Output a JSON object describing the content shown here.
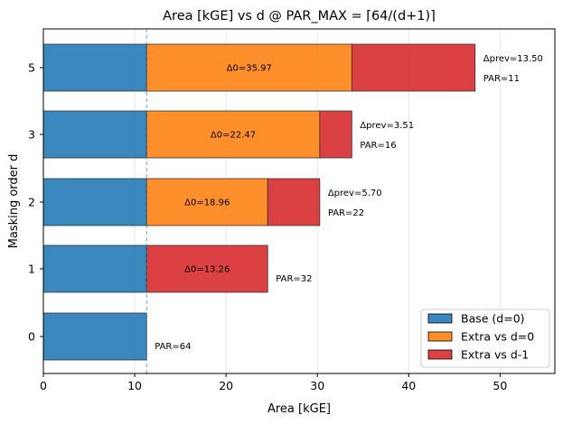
{
  "chart_data": {
    "type": "bar",
    "orientation": "horizontal",
    "stacked": true,
    "title": "Area [kGE] vs d @ PAR_MAX = ⌈64/(d+1)⌉",
    "xlabel": "Area [kGE]",
    "ylabel": "Masking order d",
    "xlim": [
      0,
      56
    ],
    "xticks": [
      "0",
      "10",
      "20",
      "30",
      "40",
      "50"
    ],
    "xtick_values": [
      0,
      10,
      20,
      30,
      40,
      50
    ],
    "vertical_gridlines": true,
    "reference_line_x": 11.3,
    "legend_placement": "bottom-right",
    "categories": [
      "0",
      "1",
      "2",
      "3",
      "5"
    ],
    "series": [
      {
        "name": "Base (d=0)",
        "color": "#1f77b4",
        "values": [
          11.3,
          11.3,
          11.3,
          11.3,
          11.3
        ]
      },
      {
        "name": "Extra vs d=0",
        "color": "#ff7f0e",
        "values": [
          0,
          0,
          13.26,
          18.96,
          22.47
        ]
      },
      {
        "name": "Extra vs d-1",
        "color": "#d62728",
        "values": [
          0,
          13.26,
          5.7,
          3.51,
          13.5
        ]
      }
    ],
    "delta0_labels": [
      "",
      "Δ0=13.26",
      "Δ0=18.96",
      "Δ0=22.47",
      "Δ0=35.97"
    ],
    "dprev_labels": [
      "",
      "",
      "Δprev=5.70",
      "Δprev=3.51",
      "Δprev=13.50"
    ],
    "par_labels": [
      "PAR=64",
      "PAR=32",
      "PAR=22",
      "PAR=16",
      "PAR=11"
    ]
  }
}
